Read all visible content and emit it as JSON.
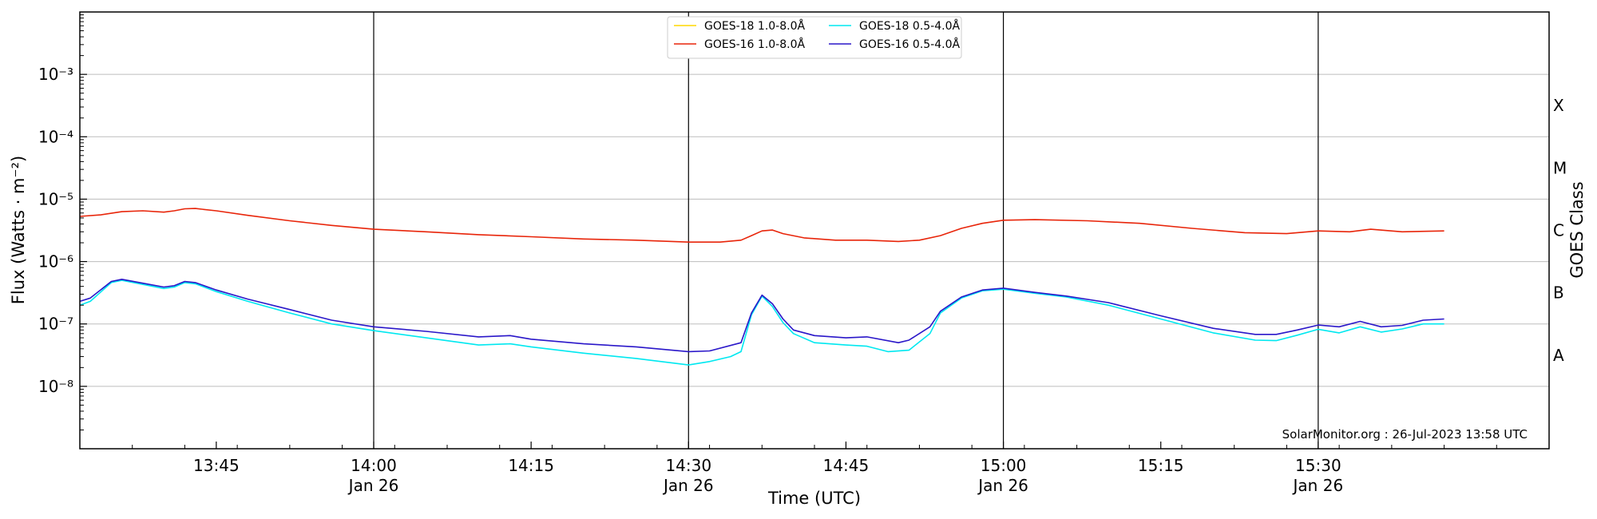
{
  "chart_data": {
    "type": "line",
    "xlabel": "Time (UTC)",
    "ylabel": "Flux (Watts · m⁻²)",
    "right_ylabel": "GOES Class",
    "y_scale": "log",
    "ylim": [
      1e-09,
      0.01
    ],
    "xlim": [
      "13:32",
      "15:52"
    ],
    "y_ticks": [
      {
        "value": 1e-08,
        "label": "10⁻⁸"
      },
      {
        "value": 1e-07,
        "label": "10⁻⁷"
      },
      {
        "value": 1e-06,
        "label": "10⁻⁶"
      },
      {
        "value": 1e-05,
        "label": "10⁻⁵"
      },
      {
        "value": 0.0001,
        "label": "10⁻⁴"
      },
      {
        "value": 0.001,
        "label": "10⁻³"
      }
    ],
    "x_ticks": [
      {
        "time": "13:45",
        "label": "13:45",
        "sublabel": ""
      },
      {
        "time": "14:00",
        "label": "14:00",
        "sublabel": "Jan 26"
      },
      {
        "time": "14:15",
        "label": "14:15",
        "sublabel": ""
      },
      {
        "time": "14:30",
        "label": "14:30",
        "sublabel": "Jan 26"
      },
      {
        "time": "14:45",
        "label": "14:45",
        "sublabel": ""
      },
      {
        "time": "15:00",
        "label": "15:00",
        "sublabel": "Jan 26"
      },
      {
        "time": "15:15",
        "label": "15:15",
        "sublabel": ""
      },
      {
        "time": "15:30",
        "label": "15:30",
        "sublabel": "Jan 26"
      }
    ],
    "vertical_lines": [
      "14:00",
      "14:30",
      "15:00",
      "15:30"
    ],
    "goes_classes": [
      {
        "label": "A",
        "value": 3.16e-08
      },
      {
        "label": "B",
        "value": 3.16e-07
      },
      {
        "label": "C",
        "value": 3.16e-06
      },
      {
        "label": "M",
        "value": 3.16e-05
      },
      {
        "label": "X",
        "value": 0.000316
      }
    ],
    "grid": true,
    "legend_position": "top-center",
    "credit": "SolarMonitor.org : 26-Jul-2023 13:58 UTC",
    "series": [
      {
        "name": "GOES-18 1.0-8.0Å",
        "color": "#ffd700",
        "points": []
      },
      {
        "name": "GOES-16 1.0-8.0Å",
        "color": "#e8250a",
        "points": [
          [
            "13:32",
            5.3e-06
          ],
          [
            "13:34",
            5.6e-06
          ],
          [
            "13:36",
            6.3e-06
          ],
          [
            "13:38",
            6.5e-06
          ],
          [
            "13:40",
            6.2e-06
          ],
          [
            "13:41",
            6.5e-06
          ],
          [
            "13:42",
            7e-06
          ],
          [
            "13:43",
            7.1e-06
          ],
          [
            "13:45",
            6.5e-06
          ],
          [
            "13:48",
            5.5e-06
          ],
          [
            "13:52",
            4.5e-06
          ],
          [
            "13:56",
            3.8e-06
          ],
          [
            "14:00",
            3.3e-06
          ],
          [
            "14:05",
            3e-06
          ],
          [
            "14:10",
            2.7e-06
          ],
          [
            "14:15",
            2.5e-06
          ],
          [
            "14:20",
            2.3e-06
          ],
          [
            "14:25",
            2.2e-06
          ],
          [
            "14:30",
            2.05e-06
          ],
          [
            "14:33",
            2.05e-06
          ],
          [
            "14:35",
            2.2e-06
          ],
          [
            "14:36",
            2.6e-06
          ],
          [
            "14:37",
            3.1e-06
          ],
          [
            "14:38",
            3.2e-06
          ],
          [
            "14:39",
            2.8e-06
          ],
          [
            "14:41",
            2.4e-06
          ],
          [
            "14:44",
            2.2e-06
          ],
          [
            "14:47",
            2.2e-06
          ],
          [
            "14:50",
            2.1e-06
          ],
          [
            "14:52",
            2.2e-06
          ],
          [
            "14:54",
            2.6e-06
          ],
          [
            "14:56",
            3.4e-06
          ],
          [
            "14:58",
            4.1e-06
          ],
          [
            "15:00",
            4.6e-06
          ],
          [
            "15:03",
            4.7e-06
          ],
          [
            "15:08",
            4.5e-06
          ],
          [
            "15:13",
            4.1e-06
          ],
          [
            "15:18",
            3.4e-06
          ],
          [
            "15:23",
            2.9e-06
          ],
          [
            "15:27",
            2.8e-06
          ],
          [
            "15:30",
            3.1e-06
          ],
          [
            "15:33",
            3e-06
          ],
          [
            "15:35",
            3.3e-06
          ],
          [
            "15:38",
            3e-06
          ],
          [
            "15:42",
            3.1e-06
          ]
        ]
      },
      {
        "name": "GOES-18 0.5-4.0Å",
        "color": "#00e8f0",
        "points": [
          [
            "13:32",
            2e-07
          ],
          [
            "13:33",
            2.3e-07
          ],
          [
            "13:35",
            4.6e-07
          ],
          [
            "13:36",
            5e-07
          ],
          [
            "13:38",
            4.3e-07
          ],
          [
            "13:40",
            3.7e-07
          ],
          [
            "13:41",
            3.9e-07
          ],
          [
            "13:42",
            4.6e-07
          ],
          [
            "13:43",
            4.4e-07
          ],
          [
            "13:45",
            3.3e-07
          ],
          [
            "13:48",
            2.3e-07
          ],
          [
            "13:52",
            1.5e-07
          ],
          [
            "13:56",
            1e-07
          ],
          [
            "14:00",
            7.8e-08
          ],
          [
            "14:05",
            6e-08
          ],
          [
            "14:10",
            4.6e-08
          ],
          [
            "14:13",
            4.8e-08
          ],
          [
            "14:15",
            4.3e-08
          ],
          [
            "14:20",
            3.4e-08
          ],
          [
            "14:25",
            2.8e-08
          ],
          [
            "14:30",
            2.2e-08
          ],
          [
            "14:32",
            2.5e-08
          ],
          [
            "14:34",
            3e-08
          ],
          [
            "14:35",
            3.6e-08
          ],
          [
            "14:36",
            1.4e-07
          ],
          [
            "14:37",
            2.8e-07
          ],
          [
            "14:38",
            1.9e-07
          ],
          [
            "14:39",
            1.05e-07
          ],
          [
            "14:40",
            7e-08
          ],
          [
            "14:42",
            5e-08
          ],
          [
            "14:45",
            4.6e-08
          ],
          [
            "14:47",
            4.4e-08
          ],
          [
            "14:49",
            3.6e-08
          ],
          [
            "14:51",
            3.8e-08
          ],
          [
            "14:53",
            7e-08
          ],
          [
            "14:54",
            1.5e-07
          ],
          [
            "14:56",
            2.6e-07
          ],
          [
            "14:58",
            3.4e-07
          ],
          [
            "15:00",
            3.6e-07
          ],
          [
            "15:03",
            3.1e-07
          ],
          [
            "15:06",
            2.7e-07
          ],
          [
            "15:10",
            2e-07
          ],
          [
            "15:15",
            1.2e-07
          ],
          [
            "15:20",
            7.2e-08
          ],
          [
            "15:24",
            5.5e-08
          ],
          [
            "15:26",
            5.4e-08
          ],
          [
            "15:28",
            6.6e-08
          ],
          [
            "15:30",
            8.2e-08
          ],
          [
            "15:32",
            7.2e-08
          ],
          [
            "15:34",
            9e-08
          ],
          [
            "15:36",
            7.4e-08
          ],
          [
            "15:38",
            8.3e-08
          ],
          [
            "15:40",
            1e-07
          ],
          [
            "15:42",
            1e-07
          ]
        ]
      },
      {
        "name": "GOES-16 0.5-4.0Å",
        "color": "#2a17c9",
        "points": [
          [
            "13:32",
            2.3e-07
          ],
          [
            "13:33",
            2.6e-07
          ],
          [
            "13:35",
            4.8e-07
          ],
          [
            "13:36",
            5.2e-07
          ],
          [
            "13:38",
            4.5e-07
          ],
          [
            "13:40",
            3.9e-07
          ],
          [
            "13:41",
            4.1e-07
          ],
          [
            "13:42",
            4.8e-07
          ],
          [
            "13:43",
            4.6e-07
          ],
          [
            "13:45",
            3.5e-07
          ],
          [
            "13:48",
            2.5e-07
          ],
          [
            "13:52",
            1.7e-07
          ],
          [
            "13:56",
            1.15e-07
          ],
          [
            "14:00",
            9e-08
          ],
          [
            "14:05",
            7.6e-08
          ],
          [
            "14:10",
            6.2e-08
          ],
          [
            "14:13",
            6.5e-08
          ],
          [
            "14:15",
            5.7e-08
          ],
          [
            "14:20",
            4.8e-08
          ],
          [
            "14:25",
            4.3e-08
          ],
          [
            "14:30",
            3.6e-08
          ],
          [
            "14:32",
            3.7e-08
          ],
          [
            "14:35",
            5e-08
          ],
          [
            "14:36",
            1.5e-07
          ],
          [
            "14:37",
            2.9e-07
          ],
          [
            "14:38",
            2.1e-07
          ],
          [
            "14:39",
            1.2e-07
          ],
          [
            "14:40",
            8e-08
          ],
          [
            "14:42",
            6.5e-08
          ],
          [
            "14:45",
            6e-08
          ],
          [
            "14:47",
            6.2e-08
          ],
          [
            "14:50",
            5e-08
          ],
          [
            "14:51",
            5.5e-08
          ],
          [
            "14:53",
            9e-08
          ],
          [
            "14:54",
            1.6e-07
          ],
          [
            "14:56",
            2.7e-07
          ],
          [
            "14:58",
            3.5e-07
          ],
          [
            "15:00",
            3.75e-07
          ],
          [
            "15:03",
            3.2e-07
          ],
          [
            "15:06",
            2.8e-07
          ],
          [
            "15:10",
            2.2e-07
          ],
          [
            "15:15",
            1.35e-07
          ],
          [
            "15:20",
            8.5e-08
          ],
          [
            "15:24",
            6.8e-08
          ],
          [
            "15:26",
            6.8e-08
          ],
          [
            "15:28",
            8e-08
          ],
          [
            "15:30",
            9.6e-08
          ],
          [
            "15:32",
            9e-08
          ],
          [
            "15:34",
            1.1e-07
          ],
          [
            "15:36",
            9e-08
          ],
          [
            "15:38",
            9.5e-08
          ],
          [
            "15:40",
            1.15e-07
          ],
          [
            "15:42",
            1.2e-07
          ]
        ]
      }
    ]
  }
}
